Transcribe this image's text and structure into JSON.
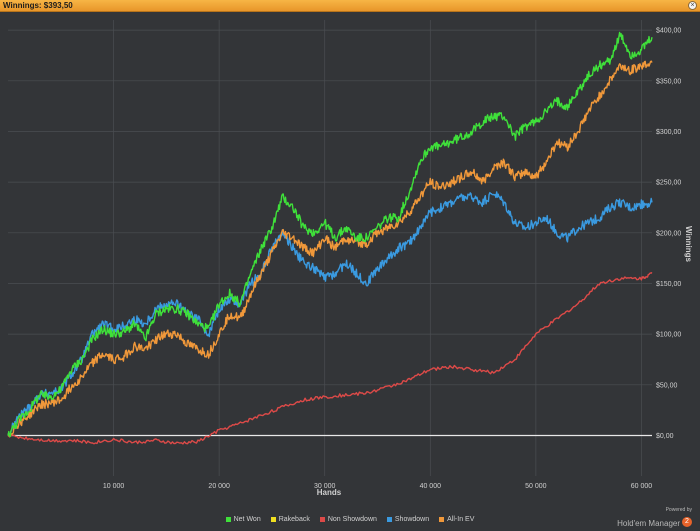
{
  "window": {
    "title": "Winnings: $393,50"
  },
  "branding": {
    "powered_by": "Powered by",
    "product": "Hold'em Manager",
    "badge": "2"
  },
  "colors": {
    "background": "#333538",
    "grid": "#4b4e52",
    "zero_line": "#e8e8e8",
    "text": "#d0d0d0",
    "titlebar": "#f0a838"
  },
  "chart_data": {
    "type": "line",
    "xlabel": "Hands",
    "ylabel": "Winnings",
    "xlim": [
      0,
      61000
    ],
    "ylim": [
      -40,
      410
    ],
    "x_ticks": [
      10000,
      20000,
      30000,
      40000,
      50000,
      60000
    ],
    "x_tick_labels": [
      "10 000",
      "20 000",
      "30 000",
      "40 000",
      "50 000",
      "60 000"
    ],
    "y_ticks": [
      0,
      50,
      100,
      150,
      200,
      250,
      300,
      350,
      400
    ],
    "y_tick_labels": [
      "$0,00",
      "$50,00",
      "$100,00",
      "$150,00",
      "$200,00",
      "$250,00",
      "$300,00",
      "$350,00",
      "$400,00"
    ],
    "grid": true,
    "legend_position": "bottom",
    "y_axis_side": "right",
    "series": [
      {
        "name": "Net Won",
        "color": "#3fe03a",
        "x": [
          0,
          1000,
          2000,
          3000,
          4000,
          5000,
          6000,
          7000,
          8000,
          9000,
          10000,
          11000,
          12000,
          13000,
          14000,
          15000,
          16000,
          17000,
          18000,
          19000,
          20000,
          21000,
          22000,
          23000,
          24000,
          25000,
          26000,
          27000,
          28000,
          29000,
          30000,
          31000,
          32000,
          33000,
          34000,
          35000,
          36000,
          37000,
          38000,
          39000,
          40000,
          41000,
          42000,
          43000,
          44000,
          45000,
          46000,
          47000,
          48000,
          49000,
          50000,
          51000,
          52000,
          53000,
          54000,
          55000,
          56000,
          57000,
          58000,
          59000,
          60000,
          61000
        ],
        "values": [
          0,
          15,
          25,
          40,
          38,
          45,
          65,
          75,
          95,
          105,
          100,
          102,
          110,
          95,
          120,
          125,
          125,
          120,
          110,
          105,
          130,
          140,
          130,
          160,
          185,
          205,
          235,
          225,
          205,
          200,
          210,
          195,
          205,
          195,
          195,
          205,
          215,
          215,
          240,
          270,
          285,
          285,
          290,
          295,
          300,
          310,
          315,
          315,
          295,
          305,
          310,
          320,
          330,
          325,
          340,
          355,
          365,
          370,
          395,
          375,
          380,
          393
        ]
      },
      {
        "name": "Rakeback",
        "color": "#f0e020",
        "x": [],
        "values": []
      },
      {
        "name": "Non Showdown",
        "color": "#dd4a48",
        "x": [
          0,
          2000,
          4000,
          6000,
          8000,
          10000,
          12000,
          14000,
          16000,
          18000,
          20000,
          22000,
          24000,
          26000,
          28000,
          30000,
          32000,
          34000,
          36000,
          38000,
          40000,
          42000,
          44000,
          46000,
          48000,
          50000,
          52000,
          54000,
          56000,
          58000,
          60000,
          61000
        ],
        "values": [
          0,
          -3,
          -5,
          -5,
          -7,
          -4,
          -7,
          -5,
          -8,
          -6,
          5,
          12,
          20,
          28,
          35,
          38,
          40,
          42,
          48,
          55,
          65,
          68,
          65,
          62,
          75,
          100,
          115,
          130,
          150,
          155,
          155,
          160
        ]
      },
      {
        "name": "Showdown",
        "color": "#3a9ae0",
        "x": [
          0,
          1000,
          2000,
          3000,
          4000,
          5000,
          6000,
          7000,
          8000,
          9000,
          10000,
          11000,
          12000,
          13000,
          14000,
          15000,
          16000,
          17000,
          18000,
          19000,
          20000,
          21000,
          22000,
          23000,
          24000,
          25000,
          26000,
          27000,
          28000,
          29000,
          30000,
          31000,
          32000,
          33000,
          34000,
          35000,
          36000,
          37000,
          38000,
          39000,
          40000,
          41000,
          42000,
          43000,
          44000,
          45000,
          46000,
          47000,
          48000,
          49000,
          50000,
          51000,
          52000,
          53000,
          54000,
          55000,
          56000,
          57000,
          58000,
          59000,
          60000,
          61000
        ],
        "values": [
          0,
          18,
          28,
          40,
          42,
          45,
          60,
          75,
          100,
          110,
          105,
          108,
          115,
          110,
          125,
          130,
          130,
          120,
          115,
          100,
          125,
          135,
          130,
          150,
          160,
          185,
          200,
          185,
          170,
          165,
          155,
          160,
          170,
          160,
          150,
          165,
          175,
          185,
          190,
          205,
          220,
          225,
          230,
          235,
          235,
          230,
          240,
          230,
          210,
          205,
          210,
          215,
          200,
          195,
          205,
          210,
          215,
          225,
          230,
          225,
          228,
          230
        ]
      },
      {
        "name": "All-In EV",
        "color": "#f0983a",
        "x": [
          0,
          1000,
          2000,
          3000,
          4000,
          5000,
          6000,
          7000,
          8000,
          9000,
          10000,
          11000,
          12000,
          13000,
          14000,
          15000,
          16000,
          17000,
          18000,
          19000,
          20000,
          21000,
          22000,
          23000,
          24000,
          25000,
          26000,
          27000,
          28000,
          29000,
          30000,
          31000,
          32000,
          33000,
          34000,
          35000,
          36000,
          37000,
          38000,
          39000,
          40000,
          41000,
          42000,
          43000,
          44000,
          45000,
          46000,
          47000,
          48000,
          49000,
          50000,
          51000,
          52000,
          53000,
          54000,
          55000,
          56000,
          57000,
          58000,
          59000,
          60000,
          61000
        ],
        "values": [
          0,
          12,
          20,
          30,
          32,
          35,
          48,
          58,
          72,
          80,
          75,
          78,
          88,
          85,
          95,
          100,
          100,
          90,
          85,
          80,
          100,
          120,
          115,
          140,
          160,
          180,
          200,
          195,
          185,
          180,
          195,
          185,
          195,
          190,
          190,
          200,
          205,
          210,
          220,
          235,
          250,
          245,
          250,
          255,
          260,
          250,
          265,
          270,
          255,
          260,
          255,
          270,
          290,
          285,
          300,
          320,
          335,
          350,
          365,
          360,
          365,
          368
        ]
      }
    ]
  }
}
